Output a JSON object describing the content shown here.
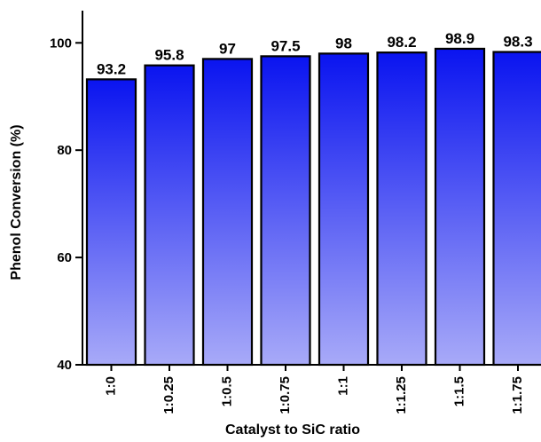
{
  "chart_data": {
    "type": "bar",
    "title": "",
    "xlabel": "Catalyst to SiC ratio",
    "ylabel": "Phenol Conversion (%)",
    "categories": [
      "1:0",
      "1:0.25",
      "1:0.5",
      "1:0.75",
      "1:1",
      "1:1.25",
      "1:1.5",
      "1:1.75"
    ],
    "values": [
      93.2,
      95.8,
      97,
      97.5,
      98,
      98.2,
      98.9,
      98.3
    ],
    "value_labels": [
      "93.2",
      "95.8",
      "97",
      "97.5",
      "98",
      "98.2",
      "98.9",
      "98.3"
    ],
    "ylim": [
      40,
      106
    ],
    "yticks": [
      40,
      60,
      80,
      100
    ],
    "ytick_labels": [
      "40",
      "60",
      "80",
      "100"
    ],
    "grid": false,
    "legend": "none",
    "colors": {
      "bar_top": "#0a14f0",
      "bar_bottom": "#a8aaf8",
      "outline": "#000000"
    }
  }
}
